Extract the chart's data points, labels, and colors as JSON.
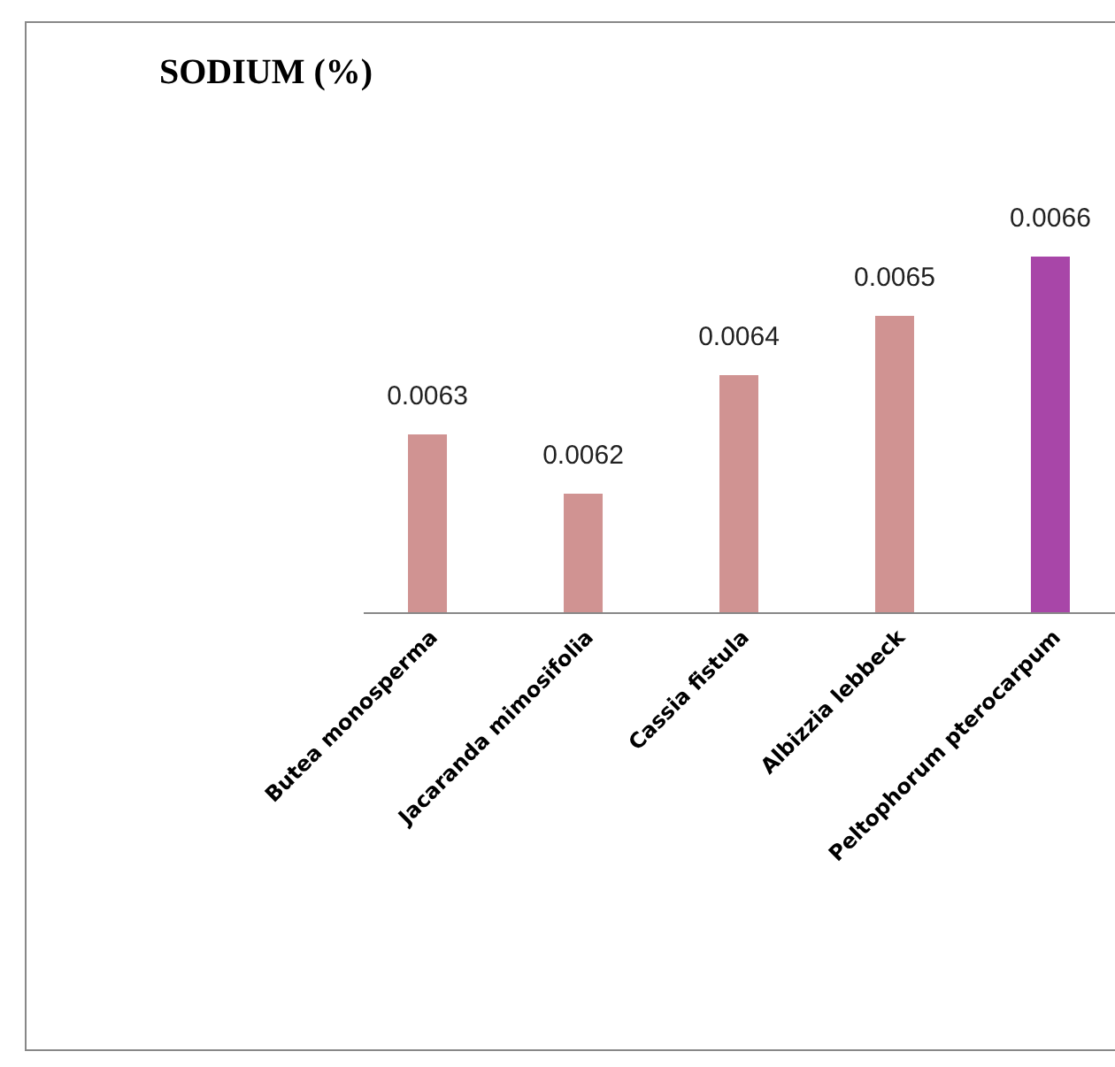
{
  "chart_data": {
    "type": "bar",
    "title": "SODIUM (%)",
    "categories": [
      "Butea monosperma",
      "Jacaranda mimosifolia",
      "Cassia fistula",
      "Albizzia lebbeck",
      "Peltophorum pterocarpum"
    ],
    "values": [
      0.0063,
      0.0062,
      0.0064,
      0.0065,
      0.0066
    ],
    "colors": [
      "#d09392",
      "#d09392",
      "#d09392",
      "#d09392",
      "#a846a8"
    ],
    "ylim": [
      0.006,
      0.0066
    ],
    "data_labels": true
  }
}
